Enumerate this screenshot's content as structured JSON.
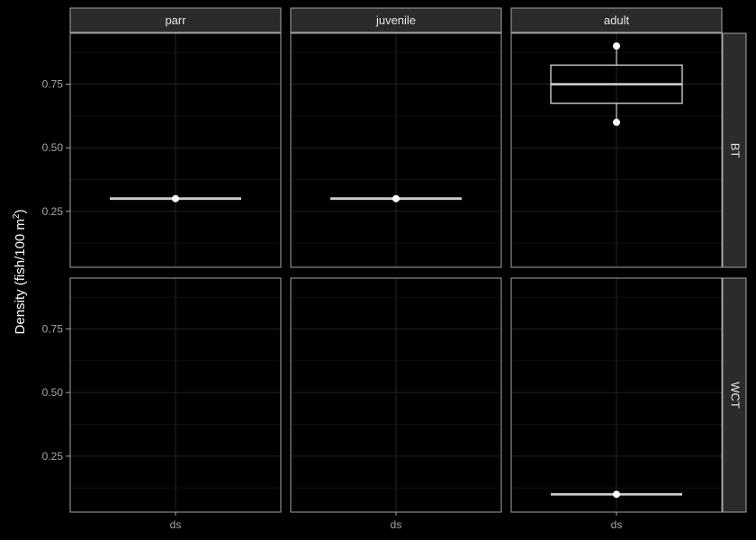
{
  "chart_data": {
    "type": "boxplot",
    "ylabel": "Density (fish/100 m²)",
    "ylabel_main": "Density (fish/100 m",
    "ylabel_sup": "2",
    "ylabel_end": ")",
    "xlabel": "",
    "x_categories": [
      "ds"
    ],
    "facet_columns": [
      "parr",
      "juvenile",
      "adult"
    ],
    "facet_rows": [
      "BT",
      "WCT"
    ],
    "ylim": [
      0.03,
      0.95
    ],
    "yticks": [
      0.25,
      0.5,
      0.75
    ],
    "ytick_labels": [
      "0.25",
      "0.50",
      "0.75"
    ],
    "grid": true,
    "theme": "dark",
    "colors": {
      "background": "#000000",
      "panel_border": "#a6a6a6",
      "strip_fill": "#2b2b2b",
      "box": "#cccccc",
      "point": "#ffffff",
      "text": "#a6a6a6"
    },
    "panels": [
      {
        "row": "BT",
        "col": "parr",
        "box": {
          "min": 0.3,
          "q1": 0.3,
          "median": 0.3,
          "q3": 0.3,
          "max": 0.3
        },
        "outliers": [],
        "points": [
          0.3
        ]
      },
      {
        "row": "BT",
        "col": "juvenile",
        "box": {
          "min": 0.3,
          "q1": 0.3,
          "median": 0.3,
          "q3": 0.3,
          "max": 0.3
        },
        "outliers": [],
        "points": [
          0.3
        ]
      },
      {
        "row": "BT",
        "col": "adult",
        "box": {
          "min": 0.6,
          "q1": 0.675,
          "median": 0.75,
          "q3": 0.825,
          "max": 0.9
        },
        "outliers": [],
        "points": [
          0.9,
          0.6
        ]
      },
      {
        "row": "WCT",
        "col": "parr",
        "box": null,
        "outliers": [],
        "points": []
      },
      {
        "row": "WCT",
        "col": "juvenile",
        "box": null,
        "outliers": [],
        "points": []
      },
      {
        "row": "WCT",
        "col": "adult",
        "box": {
          "min": 0.1,
          "q1": 0.1,
          "median": 0.1,
          "q3": 0.1,
          "max": 0.1
        },
        "outliers": [],
        "points": [
          0.1
        ]
      }
    ]
  }
}
